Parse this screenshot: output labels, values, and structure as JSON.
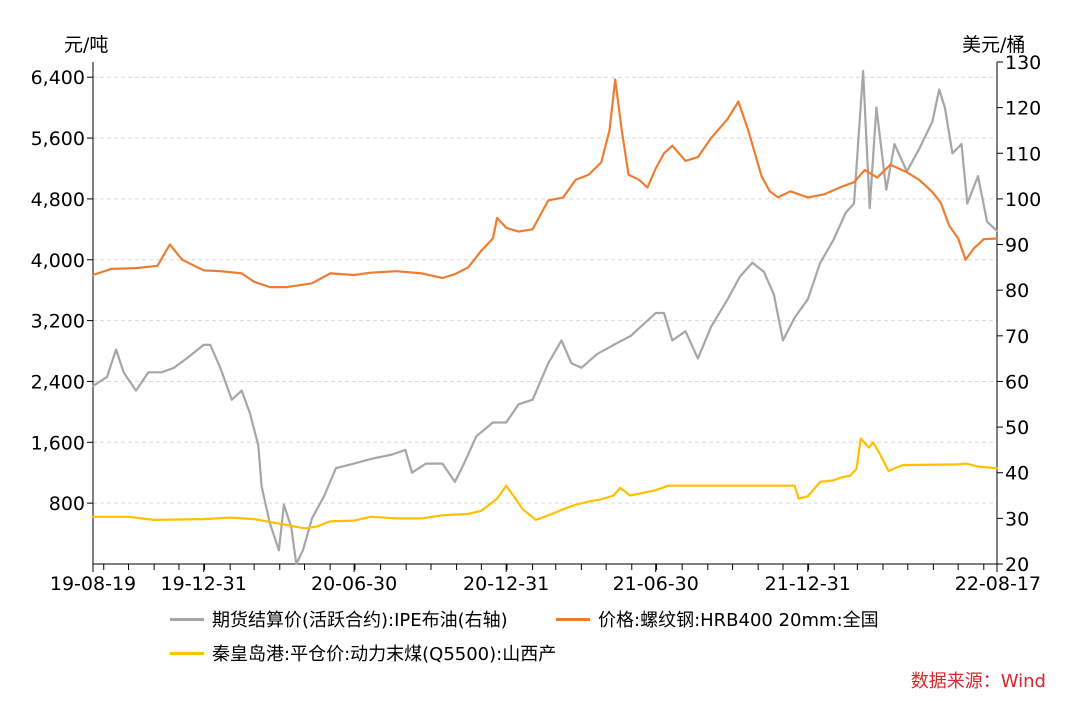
{
  "chart_data": {
    "type": "line",
    "left_unit": "元/吨",
    "right_unit": "美元/桶",
    "x_ticks": [
      "19-08-19",
      "19-12-31",
      "20-06-30",
      "20-12-31",
      "21-06-30",
      "21-12-31",
      "22-08-17"
    ],
    "x_range": [
      "2019-08-19",
      "2022-08-17"
    ],
    "y_left": {
      "range": [
        0,
        6600
      ],
      "ticks": [
        800,
        1600,
        2400,
        3200,
        4000,
        4800,
        5600,
        6400
      ],
      "tick_labels": [
        "800",
        "1,600",
        "2,400",
        "3,200",
        "4,000",
        "4,800",
        "5,600",
        "6,400"
      ]
    },
    "y_right": {
      "range": [
        20,
        130
      ],
      "ticks": [
        20,
        30,
        40,
        50,
        60,
        70,
        80,
        90,
        100,
        110,
        120,
        130
      ],
      "tick_labels": [
        "20",
        "30",
        "40",
        "50",
        "60",
        "70",
        "80",
        "90",
        "100",
        "110",
        "120",
        "130"
      ]
    },
    "grid": true,
    "legend_position": "bottom",
    "series": [
      {
        "name": "期货结算价(活跃合约):IPE布油(右轴)",
        "axis": "right",
        "color": "#a6a6a6",
        "points": [
          [
            "2019-08-19",
            59
          ],
          [
            "2019-09-05",
            61
          ],
          [
            "2019-09-16",
            67
          ],
          [
            "2019-09-25",
            62
          ],
          [
            "2019-10-10",
            58
          ],
          [
            "2019-10-25",
            62
          ],
          [
            "2019-11-10",
            62
          ],
          [
            "2019-11-25",
            63
          ],
          [
            "2019-12-10",
            65
          ],
          [
            "2019-12-31",
            68
          ],
          [
            "2020-01-08",
            68
          ],
          [
            "2020-01-20",
            63
          ],
          [
            "2020-02-03",
            56
          ],
          [
            "2020-02-15",
            58
          ],
          [
            "2020-02-25",
            53
          ],
          [
            "2020-03-06",
            46
          ],
          [
            "2020-03-10",
            37
          ],
          [
            "2020-03-20",
            29
          ],
          [
            "2020-03-31",
            23
          ],
          [
            "2020-04-06",
            33
          ],
          [
            "2020-04-15",
            28
          ],
          [
            "2020-04-21",
            20
          ],
          [
            "2020-04-29",
            23
          ],
          [
            "2020-05-10",
            30
          ],
          [
            "2020-05-25",
            35
          ],
          [
            "2020-06-08",
            41
          ],
          [
            "2020-06-30",
            42
          ],
          [
            "2020-07-20",
            43
          ],
          [
            "2020-08-15",
            44
          ],
          [
            "2020-08-31",
            45
          ],
          [
            "2020-09-08",
            40
          ],
          [
            "2020-09-25",
            42
          ],
          [
            "2020-10-15",
            42
          ],
          [
            "2020-10-30",
            38
          ],
          [
            "2020-11-10",
            42
          ],
          [
            "2020-11-25",
            48
          ],
          [
            "2020-12-15",
            51
          ],
          [
            "2020-12-31",
            51
          ],
          [
            "2021-01-15",
            55
          ],
          [
            "2021-02-01",
            56
          ],
          [
            "2021-02-20",
            64
          ],
          [
            "2021-03-08",
            69
          ],
          [
            "2021-03-20",
            64
          ],
          [
            "2021-04-01",
            63
          ],
          [
            "2021-04-20",
            66
          ],
          [
            "2021-05-10",
            68
          ],
          [
            "2021-05-31",
            70
          ],
          [
            "2021-06-30",
            75
          ],
          [
            "2021-07-10",
            75
          ],
          [
            "2021-07-20",
            69
          ],
          [
            "2021-08-05",
            71
          ],
          [
            "2021-08-20",
            65
          ],
          [
            "2021-09-05",
            72
          ],
          [
            "2021-09-25",
            78
          ],
          [
            "2021-10-10",
            83
          ],
          [
            "2021-10-25",
            86
          ],
          [
            "2021-11-08",
            84
          ],
          [
            "2021-11-20",
            79
          ],
          [
            "2021-12-01",
            69
          ],
          [
            "2021-12-15",
            74
          ],
          [
            "2021-12-31",
            78
          ],
          [
            "2022-01-15",
            86
          ],
          [
            "2022-01-31",
            91
          ],
          [
            "2022-02-15",
            97
          ],
          [
            "2022-02-25",
            99
          ],
          [
            "2022-03-08",
            128
          ],
          [
            "2022-03-16",
            98
          ],
          [
            "2022-03-24",
            120
          ],
          [
            "2022-04-05",
            102
          ],
          [
            "2022-04-15",
            112
          ],
          [
            "2022-04-30",
            106
          ],
          [
            "2022-05-15",
            111
          ],
          [
            "2022-05-31",
            117
          ],
          [
            "2022-06-08",
            124
          ],
          [
            "2022-06-15",
            120
          ],
          [
            "2022-06-24",
            110
          ],
          [
            "2022-07-05",
            112
          ],
          [
            "2022-07-12",
            99
          ],
          [
            "2022-07-25",
            105
          ],
          [
            "2022-08-05",
            95
          ],
          [
            "2022-08-17",
            93
          ]
        ]
      },
      {
        "name": "价格:螺纹钢:HRB400 20mm:全国",
        "axis": "left",
        "color": "#ed7d31",
        "points": [
          [
            "2019-08-19",
            3800
          ],
          [
            "2019-09-10",
            3880
          ],
          [
            "2019-10-10",
            3890
          ],
          [
            "2019-11-05",
            3920
          ],
          [
            "2019-11-20",
            4200
          ],
          [
            "2019-12-05",
            4000
          ],
          [
            "2019-12-31",
            3860
          ],
          [
            "2020-01-20",
            3850
          ],
          [
            "2020-02-15",
            3820
          ],
          [
            "2020-03-01",
            3710
          ],
          [
            "2020-03-20",
            3640
          ],
          [
            "2020-04-10",
            3640
          ],
          [
            "2020-05-10",
            3690
          ],
          [
            "2020-06-01",
            3820
          ],
          [
            "2020-06-30",
            3800
          ],
          [
            "2020-07-20",
            3830
          ],
          [
            "2020-08-20",
            3850
          ],
          [
            "2020-09-20",
            3820
          ],
          [
            "2020-10-15",
            3760
          ],
          [
            "2020-10-30",
            3810
          ],
          [
            "2020-11-15",
            3900
          ],
          [
            "2020-12-01",
            4120
          ],
          [
            "2020-12-15",
            4280
          ],
          [
            "2020-12-20",
            4550
          ],
          [
            "2020-12-31",
            4420
          ],
          [
            "2021-01-15",
            4370
          ],
          [
            "2021-02-01",
            4400
          ],
          [
            "2021-02-20",
            4780
          ],
          [
            "2021-03-10",
            4820
          ],
          [
            "2021-03-25",
            5050
          ],
          [
            "2021-04-10",
            5120
          ],
          [
            "2021-04-25",
            5280
          ],
          [
            "2021-05-05",
            5700
          ],
          [
            "2021-05-12",
            6370
          ],
          [
            "2021-05-20",
            5700
          ],
          [
            "2021-05-28",
            5120
          ],
          [
            "2021-06-10",
            5050
          ],
          [
            "2021-06-20",
            4950
          ],
          [
            "2021-06-30",
            5200
          ],
          [
            "2021-07-10",
            5400
          ],
          [
            "2021-07-20",
            5500
          ],
          [
            "2021-08-05",
            5300
          ],
          [
            "2021-08-20",
            5350
          ],
          [
            "2021-09-05",
            5600
          ],
          [
            "2021-09-25",
            5850
          ],
          [
            "2021-10-08",
            6080
          ],
          [
            "2021-10-20",
            5700
          ],
          [
            "2021-11-05",
            5100
          ],
          [
            "2021-11-15",
            4900
          ],
          [
            "2021-11-25",
            4820
          ],
          [
            "2021-12-10",
            4900
          ],
          [
            "2021-12-31",
            4820
          ],
          [
            "2022-01-20",
            4860
          ],
          [
            "2022-02-10",
            4960
          ],
          [
            "2022-02-25",
            5020
          ],
          [
            "2022-03-10",
            5180
          ],
          [
            "2022-03-25",
            5080
          ],
          [
            "2022-04-10",
            5250
          ],
          [
            "2022-04-30",
            5150
          ],
          [
            "2022-05-15",
            5050
          ],
          [
            "2022-05-30",
            4900
          ],
          [
            "2022-06-10",
            4750
          ],
          [
            "2022-06-20",
            4450
          ],
          [
            "2022-07-01",
            4280
          ],
          [
            "2022-07-10",
            4000
          ],
          [
            "2022-07-20",
            4150
          ],
          [
            "2022-08-01",
            4270
          ],
          [
            "2022-08-17",
            4280
          ]
        ]
      },
      {
        "name": "秦皇岛港:平仓价:动力末煤(Q5500):山西产",
        "axis": "left",
        "color": "#ffc000",
        "points": [
          [
            "2019-08-19",
            620
          ],
          [
            "2019-10-01",
            620
          ],
          [
            "2019-11-01",
            580
          ],
          [
            "2019-12-31",
            590
          ],
          [
            "2020-02-01",
            610
          ],
          [
            "2020-03-01",
            590
          ],
          [
            "2020-04-01",
            530
          ],
          [
            "2020-05-01",
            470
          ],
          [
            "2020-05-15",
            490
          ],
          [
            "2020-06-01",
            560
          ],
          [
            "2020-06-30",
            570
          ],
          [
            "2020-07-20",
            620
          ],
          [
            "2020-08-20",
            600
          ],
          [
            "2020-09-20",
            600
          ],
          [
            "2020-10-15",
            640
          ],
          [
            "2020-11-15",
            660
          ],
          [
            "2020-12-01",
            700
          ],
          [
            "2020-12-20",
            860
          ],
          [
            "2020-12-31",
            1030
          ],
          [
            "2021-01-10",
            880
          ],
          [
            "2021-01-20",
            720
          ],
          [
            "2021-02-05",
            580
          ],
          [
            "2021-02-25",
            660
          ],
          [
            "2021-03-10",
            720
          ],
          [
            "2021-03-25",
            780
          ],
          [
            "2021-04-10",
            820
          ],
          [
            "2021-04-25",
            850
          ],
          [
            "2021-05-10",
            900
          ],
          [
            "2021-05-18",
            1000
          ],
          [
            "2021-05-30",
            900
          ],
          [
            "2021-06-30",
            970
          ],
          [
            "2021-07-15",
            1030
          ],
          [
            "2021-11-15",
            1030
          ],
          [
            "2021-12-15",
            1030
          ],
          [
            "2021-12-20",
            860
          ],
          [
            "2021-12-31",
            890
          ],
          [
            "2022-01-15",
            1080
          ],
          [
            "2022-01-31",
            1100
          ],
          [
            "2022-02-10",
            1140
          ],
          [
            "2022-02-20",
            1160
          ],
          [
            "2022-02-28",
            1250
          ],
          [
            "2022-03-05",
            1650
          ],
          [
            "2022-03-15",
            1530
          ],
          [
            "2022-03-20",
            1600
          ],
          [
            "2022-03-28",
            1450
          ],
          [
            "2022-04-08",
            1220
          ],
          [
            "2022-04-15",
            1260
          ],
          [
            "2022-04-25",
            1300
          ],
          [
            "2022-06-30",
            1310
          ],
          [
            "2022-07-10",
            1320
          ],
          [
            "2022-07-25",
            1280
          ],
          [
            "2022-08-17",
            1260
          ]
        ]
      }
    ]
  },
  "legend": [
    {
      "label": "期货结算价(活跃合约):IPE布油(右轴)",
      "color": "#a6a6a6"
    },
    {
      "label": "价格:螺纹钢:HRB400 20mm:全国",
      "color": "#ed7d31"
    },
    {
      "label": "秦皇岛港:平仓价:动力末煤(Q5500):山西产",
      "color": "#ffc000"
    }
  ],
  "source": "数据来源：Wind"
}
